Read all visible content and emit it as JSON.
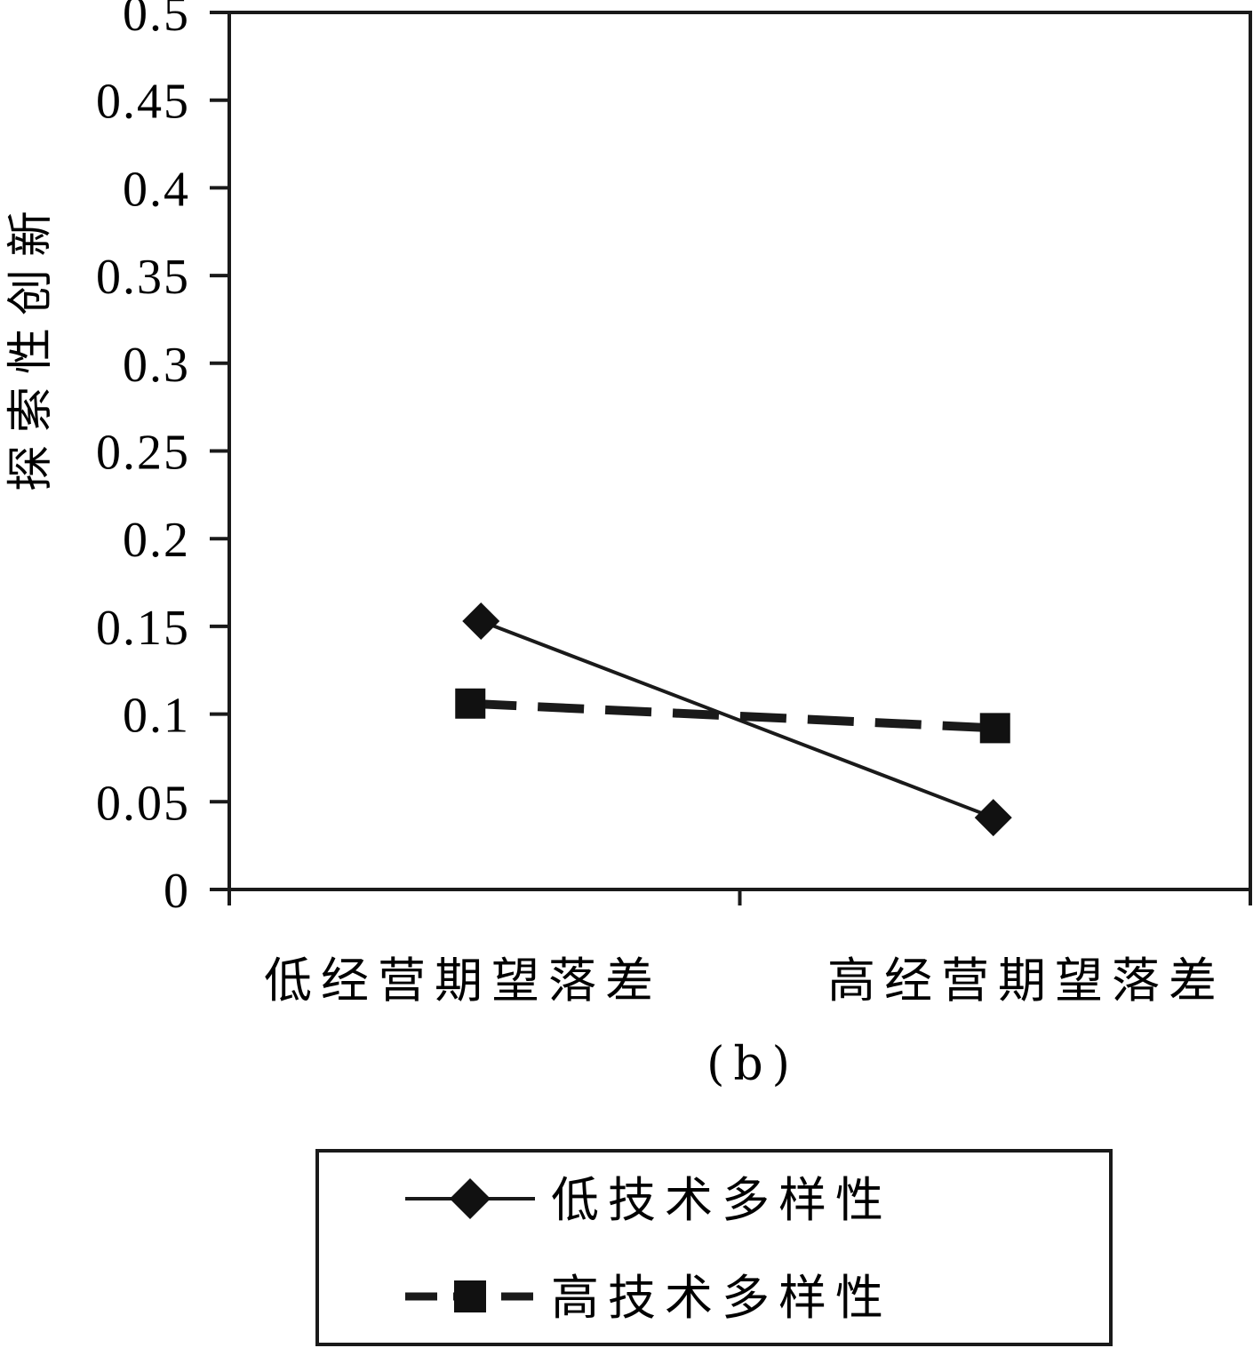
{
  "chart_data": {
    "type": "line",
    "caption": "(b)",
    "ylabel": "探索性创新",
    "xlabel": "",
    "ylim": [
      0,
      0.5
    ],
    "yticks": [
      "0",
      "0.05",
      "0.1",
      "0.15",
      "0.2",
      "0.25",
      "0.3",
      "0.35",
      "0.4",
      "0.45",
      "0.5"
    ],
    "categories": [
      "低经营期望落差",
      "高经营期望落差"
    ],
    "series": [
      {
        "name": "低技术多样性",
        "values": [
          0.153,
          0.041
        ],
        "marker": "diamond",
        "line": "solid",
        "color": "#1a1a1a"
      },
      {
        "name": "高技术多样性",
        "values": [
          0.106,
          0.092
        ],
        "marker": "square",
        "line": "dashed",
        "color": "#1a1a1a"
      }
    ],
    "grid": false,
    "legend_position": "bottom"
  }
}
